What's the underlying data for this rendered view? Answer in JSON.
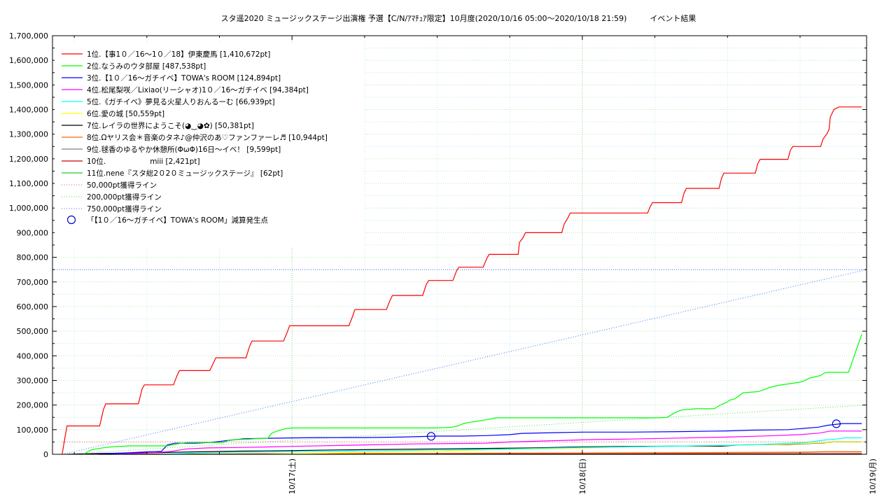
{
  "chart_data": {
    "type": "line",
    "title": "スタ遥2020 ミュージックステージ出演権 予選【C/N/ｱﾏﾁｭｱ限定】10月度(2020/10/16 05:00〜2020/10/18 21:59)　　　イベント結果",
    "xlabel": "",
    "ylabel": "",
    "x_unit": "hours since 2020/10/16 00:00",
    "xlim": [
      4.2,
      71.5
    ],
    "ylim": [
      0,
      1700000
    ],
    "grid": true,
    "legend_placement": "top-left",
    "x_ticks": [
      {
        "x": 24,
        "label": "10/17(土)"
      },
      {
        "x": 48,
        "label": "10/18(日)"
      },
      {
        "x": 72,
        "label": "10/19(月)"
      }
    ],
    "y_ticks": [
      {
        "y": 0,
        "label": "0"
      },
      {
        "y": 100000,
        "label": "100,000"
      },
      {
        "y": 200000,
        "label": "200,000"
      },
      {
        "y": 300000,
        "label": "300,000"
      },
      {
        "y": 400000,
        "label": "400,000"
      },
      {
        "y": 500000,
        "label": "500,000"
      },
      {
        "y": 600000,
        "label": "600,000"
      },
      {
        "y": 700000,
        "label": "700,000"
      },
      {
        "y": 800000,
        "label": "800,000"
      },
      {
        "y": 900000,
        "label": "900,000"
      },
      {
        "y": 1000000,
        "label": "1,000,000"
      },
      {
        "y": 1100000,
        "label": "1,100,000"
      },
      {
        "y": 1200000,
        "label": "1,200,000"
      },
      {
        "y": 1300000,
        "label": "1,300,000"
      },
      {
        "y": 1400000,
        "label": "1,400,000"
      },
      {
        "y": 1500000,
        "label": "1,500,000"
      },
      {
        "y": 1600000,
        "label": "1,600,000"
      },
      {
        "y": 1700000,
        "label": "1,700,000"
      }
    ],
    "series": [
      {
        "name": "1位.【事1０／16〜1０／18】伊東慶馬 [1,410,672pt]",
        "color": "#ff0000",
        "style": "solid",
        "x": [
          5,
          5.2,
          5.4,
          8.1,
          8.4,
          8.6,
          11.3,
          11.6,
          11.8,
          14.2,
          14.5,
          14.7,
          17.2,
          17.5,
          17.7,
          20.2,
          20.5,
          20.7,
          23.3,
          23.6,
          23.8,
          28.7,
          29,
          29.2,
          31.8,
          32.1,
          32.3,
          34.8,
          35.1,
          35.3,
          37.3,
          37.6,
          37.8,
          39.8,
          40.1,
          40.3,
          42.7,
          42.8,
          43.1,
          43.3,
          46.3,
          46.5,
          46.8,
          47,
          53.4,
          53.6,
          53.8,
          56.2,
          56.4,
          56.6,
          59.3,
          59.5,
          59.7,
          62.3,
          62.5,
          62.7,
          65,
          65.2,
          65.4,
          67.7,
          67.9,
          68.2,
          68.4,
          68.5,
          68.6,
          68.8,
          69.2,
          71.1
        ],
        "values": [
          0,
          60000,
          115000,
          115000,
          180000,
          205000,
          205000,
          265000,
          282000,
          282000,
          320000,
          340000,
          340000,
          370000,
          392000,
          392000,
          440000,
          460000,
          460000,
          495000,
          522000,
          522000,
          560000,
          588000,
          588000,
          625000,
          645000,
          645000,
          690000,
          706000,
          706000,
          745000,
          760000,
          760000,
          795000,
          812000,
          812000,
          860000,
          880000,
          900000,
          900000,
          935000,
          960000,
          980000,
          980000,
          1005000,
          1022000,
          1022000,
          1060000,
          1080000,
          1080000,
          1120000,
          1142000,
          1142000,
          1180000,
          1198000,
          1198000,
          1235000,
          1250000,
          1250000,
          1280000,
          1300000,
          1320000,
          1370000,
          1380000,
          1400000,
          1410672,
          1410672
        ]
      },
      {
        "name": "2位.なうみのウタ部屋 [487,538pt]",
        "color": "#00ff00",
        "style": "solid",
        "x": [
          6.8,
          7.1,
          7.4,
          7.8,
          8.6,
          9.1,
          10.5,
          13.7,
          14.1,
          14.5,
          14.9,
          15.3,
          18.3,
          18.7,
          19.1,
          19.5,
          20.4,
          20.9,
          21.4,
          22,
          22.3,
          22.8,
          23.2,
          23.5,
          24,
          26,
          28,
          32,
          36,
          37.2,
          37.7,
          38.2,
          38.7,
          39.4,
          40,
          40.6,
          40.9,
          41.3,
          41.6,
          42.3,
          46.3,
          46.8,
          47.3,
          47.6,
          48,
          48.6,
          49.4,
          53,
          54.4,
          55,
          55.7,
          56.2,
          57.4,
          58.9,
          59.4,
          59.9,
          60.2,
          60.6,
          61.3,
          62.6,
          63.4,
          64.2,
          65.6,
          66.2,
          66.8,
          67.7,
          68,
          68.3,
          68.9,
          69.3,
          69.7,
          70,
          71.1
        ],
        "values": [
          0,
          10000,
          18000,
          22000,
          28000,
          30000,
          34000,
          34000,
          38000,
          42000,
          45000,
          48000,
          48000,
          55000,
          58000,
          60000,
          61000,
          63000,
          64000,
          65000,
          85000,
          95000,
          100000,
          105000,
          107000,
          107000,
          107000,
          107000,
          107000,
          110000,
          115000,
          125000,
          130000,
          135000,
          140000,
          145000,
          148000,
          148000,
          148000,
          148000,
          148000,
          148000,
          148000,
          148000,
          148000,
          148000,
          148000,
          148000,
          148000,
          150000,
          170000,
          180000,
          185000,
          185000,
          200000,
          210000,
          220000,
          225000,
          250000,
          255000,
          270000,
          280000,
          290000,
          295000,
          310000,
          320000,
          330000,
          333000,
          333000,
          333000,
          333000,
          333000,
          487538
        ]
      },
      {
        "name": "3位.【1０／16〜ガチイベ】TOWA's ROOM [124,894pt]",
        "color": "#0000ff",
        "style": "solid",
        "x": [
          7.5,
          9,
          10.5,
          12,
          13.2,
          13.7,
          14.3,
          16,
          17.2,
          18,
          19,
          20,
          22,
          26,
          30,
          33,
          36,
          38,
          40,
          42,
          43,
          46,
          48,
          52,
          56,
          60,
          62,
          65,
          67.5,
          68.3,
          69,
          69.5,
          71.1
        ],
        "values": [
          0,
          3000,
          6000,
          10000,
          12000,
          38000,
          45000,
          45000,
          48000,
          52000,
          58000,
          63000,
          65000,
          68000,
          68000,
          70000,
          74000,
          74000,
          76000,
          80000,
          85000,
          88000,
          90000,
          90000,
          92000,
          95000,
          98000,
          100000,
          110000,
          118000,
          122000,
          124894,
          124894
        ]
      },
      {
        "name": "4位.松尾梨咲／Lixiao(リーシャオ)1０／16〜ガチイベ [94,384pt]",
        "color": "#ff00ff",
        "style": "solid",
        "x": [
          9,
          12,
          14,
          15.3,
          17,
          20,
          24,
          30,
          34,
          40,
          42,
          44,
          47,
          49,
          52,
          56,
          60,
          64,
          66,
          67.6,
          68.5,
          71.1
        ],
        "values": [
          0,
          5000,
          12000,
          22000,
          26000,
          28000,
          32000,
          38000,
          42000,
          45000,
          50000,
          53000,
          57000,
          60000,
          62000,
          66000,
          70000,
          76000,
          80000,
          86000,
          94384,
          94384
        ]
      },
      {
        "name": "5位.《ガチイベ》夢見る火星人りおんるーむ [66,939pt]",
        "color": "#00ffff",
        "style": "solid",
        "x": [
          13,
          18,
          26,
          33,
          36,
          40,
          44,
          48,
          52,
          56,
          60,
          63,
          65,
          66.6,
          67.1,
          68,
          69,
          69.7,
          71.1
        ],
        "values": [
          0,
          8000,
          12000,
          15000,
          18000,
          20000,
          24000,
          28000,
          30000,
          33000,
          37000,
          40000,
          45000,
          48000,
          52000,
          58000,
          62000,
          66939,
          66939
        ]
      },
      {
        "name": "6位.愛の城 [50,559pt]",
        "color": "#ffff00",
        "style": "solid",
        "x": [
          22,
          28,
          32,
          36,
          40,
          44,
          48,
          52,
          56,
          60,
          64,
          66.5,
          67.5,
          68.5,
          69,
          71.1
        ],
        "values": [
          0,
          6000,
          9000,
          12000,
          18000,
          22000,
          26000,
          30000,
          33000,
          36000,
          40000,
          44000,
          46000,
          48000,
          50559,
          50559
        ]
      },
      {
        "name": "7位.レイラの世界にようこそ(◕‿◕✿) [50,381pt]",
        "color": "#000000",
        "style": "solid",
        "x": [
          5.5,
          8,
          12,
          16,
          20,
          24,
          28,
          32,
          36,
          40,
          44,
          48,
          52,
          56,
          59.5,
          61,
          65,
          68,
          68.8,
          71.1
        ],
        "values": [
          0,
          3000,
          6000,
          10000,
          13000,
          15000,
          18000,
          20000,
          22000,
          24000,
          26000,
          30000,
          32000,
          33000,
          33000,
          38000,
          40000,
          46000,
          50381,
          50381
        ]
      },
      {
        "name": "8位.Ωヤリス会＊音楽のタネ♪@仲沢のあ♡ファンファーレ♬ [10,944pt]",
        "color": "#ff6600",
        "style": "solid",
        "x": [
          8,
          20,
          32,
          44,
          56,
          66,
          68,
          71.1
        ],
        "values": [
          0,
          2000,
          3500,
          5000,
          6500,
          8500,
          10944,
          10944
        ]
      },
      {
        "name": "9位.毬香のゆるやか休憩所(ΦωΦ)16日〜イベ！ [9,599pt]",
        "color": "#808080",
        "style": "solid",
        "x": [
          8,
          20,
          32,
          44,
          56,
          66,
          68,
          71.1
        ],
        "values": [
          0,
          1500,
          3000,
          4500,
          6000,
          7500,
          9599,
          9599
        ]
      },
      {
        "name": "10位.　　　　　　miii [2,421pt]",
        "color": "#cc0000",
        "style": "solid",
        "x": [
          8,
          30,
          50,
          71.1
        ],
        "values": [
          0,
          800,
          1600,
          2421
        ]
      },
      {
        "name": "11位.nene『スタ総2０2０ミュージックステージ』 [62pt]",
        "color": "#22cc22",
        "style": "solid",
        "x": [
          10,
          71.1
        ],
        "values": [
          0,
          62
        ]
      },
      {
        "name": "50,000pt獲得ライン",
        "color": "#ff4444",
        "style": "dotted",
        "x": [
          5,
          71.5
        ],
        "values": [
          50000,
          50000
        ]
      },
      {
        "name": "200,000pt獲得ライン",
        "color": "#44dd44",
        "style": "dotted",
        "x": [
          5,
          71.5
        ],
        "values": [
          0,
          200000
        ]
      },
      {
        "name": "750,000pt獲得ライン",
        "color": "#4466ff",
        "style": "dotted",
        "x": [
          5,
          71.5
        ],
        "values": [
          0,
          750000
        ]
      }
    ],
    "reference_hline": {
      "y": 750000,
      "color": "#4466ff"
    },
    "markers": {
      "name": "「【1０／16〜ガチイベ】TOWA's ROOM」減算発生点",
      "color": "#0000cc",
      "points": [
        {
          "x": 35.5,
          "y": 73000
        },
        {
          "x": 69,
          "y": 124000
        }
      ]
    }
  }
}
